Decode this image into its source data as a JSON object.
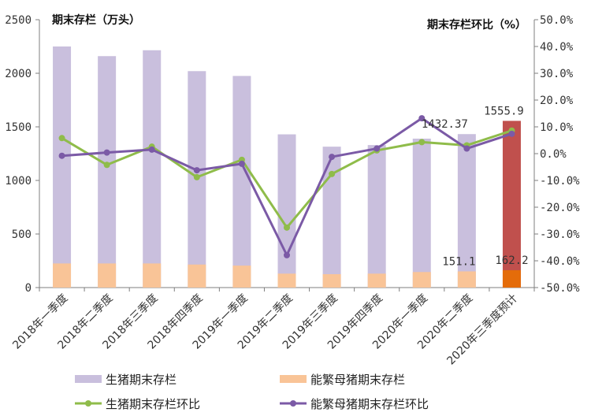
{
  "chart_data": {
    "type": "bar",
    "categories": [
      "2018年一季度",
      "2018年二季度",
      "2018年三季度",
      "2018年四季度",
      "2019年一季度",
      "2019年二季度",
      "2019年三季度",
      "2019年四季度",
      "2020年一季度",
      "2020年二季度",
      "2020年三季度预计"
    ],
    "left_axis": {
      "title": "期末存栏（万头）",
      "ylim": [
        0,
        2500
      ],
      "ticks": [
        "0",
        "500",
        "1000",
        "1500",
        "2000",
        "2500"
      ],
      "tick_values": [
        0,
        500,
        1000,
        1500,
        2000,
        2500
      ]
    },
    "right_axis": {
      "title": "期末存栏环比（%）",
      "ylim": [
        -50,
        50
      ],
      "ticks": [
        "-50.0%",
        "-40.0%",
        "-30.0%",
        "-20.0%",
        "-10.0%",
        "0.0%",
        "10.0%",
        "20.0%",
        "30.0%",
        "40.0%",
        "50.0%"
      ],
      "tick_values": [
        -50,
        -40,
        -30,
        -20,
        -10,
        0,
        10,
        20,
        30,
        40,
        50
      ]
    },
    "series": [
      {
        "name": "生猪期末存栏",
        "kind": "bar",
        "axis": "left",
        "color": "#c9bfdd",
        "highlight_color": "#c0504d",
        "values": [
          2250,
          2160,
          2215,
          2020,
          1975,
          1430,
          1315,
          1330,
          1390,
          1432.37,
          1555.9
        ]
      },
      {
        "name": "能繁母猪期末存栏",
        "kind": "bar",
        "axis": "left",
        "color": "#f9c497",
        "highlight_color": "#e46c0a",
        "values": [
          225,
          225,
          225,
          215,
          205,
          130,
          125,
          130,
          145,
          151.1,
          162.2
        ]
      },
      {
        "name": "生猪期末存栏环比",
        "kind": "line",
        "axis": "right",
        "color": "#8fbc4a",
        "values": [
          5.8,
          -4.2,
          2.6,
          -8.8,
          -2.3,
          -27.6,
          -7.6,
          1.2,
          4.3,
          3.1,
          8.6
        ]
      },
      {
        "name": "能繁母猪期末存栏环比",
        "kind": "line",
        "axis": "right",
        "color": "#7b5aa6",
        "values": [
          -0.8,
          0.4,
          1.5,
          -6.2,
          -3.8,
          -37.9,
          -1.2,
          1.9,
          13.2,
          1.9,
          7.4
        ]
      }
    ],
    "data_labels": [
      {
        "series": "生猪期末存栏",
        "index": 9,
        "text": "1432.37"
      },
      {
        "series": "生猪期末存栏",
        "index": 10,
        "text": "1555.9"
      },
      {
        "series": "能繁母猪期末存栏",
        "index": 9,
        "text": "151.1"
      },
      {
        "series": "能繁母猪期末存栏",
        "index": 10,
        "text": "162.2"
      }
    ],
    "highlight_index": 10,
    "legend_position": "bottom"
  }
}
